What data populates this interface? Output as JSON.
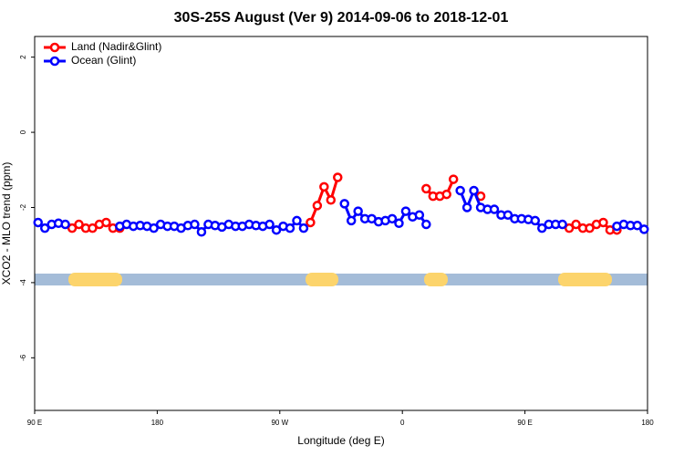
{
  "chart_data": {
    "type": "line",
    "title": "30S-25S August (Ver 9)   2014-09-06 to 2018-12-01",
    "x_label": "Longitude (deg E)",
    "y_label": "XCO2 - MLO trend (ppm)",
    "x": [
      92.5,
      97.5,
      102.5,
      107.5,
      112.5,
      117.5,
      122.5,
      127.5,
      132.5,
      137.5,
      142.5,
      147.5,
      152.5,
      157.5,
      162.5,
      167.5,
      172.5,
      177.5,
      182.5,
      187.5,
      192.5,
      197.5,
      202.5,
      207.5,
      212.5,
      217.5,
      222.5,
      227.5,
      232.5,
      237.5,
      242.5,
      247.5,
      252.5,
      257.5,
      262.5,
      267.5,
      272.5,
      277.5,
      282.5,
      287.5,
      292.5,
      297.5,
      302.5,
      307.5,
      312.5,
      317.5,
      322.5,
      327.5,
      332.5,
      337.5,
      342.5,
      347.5,
      352.5,
      357.5,
      362.5,
      367.5,
      372.5,
      377.5,
      382.5,
      387.5,
      392.5,
      397.5,
      402.5,
      407.5,
      412.5,
      417.5,
      422.5,
      427.5,
      432.5,
      437.5,
      442.5,
      447.5,
      452.5,
      457.5,
      462.5,
      467.5,
      472.5,
      477.5,
      482.5,
      487.5,
      492.5,
      497.5,
      502.5,
      507.5,
      512.5,
      517.5,
      522.5,
      527.5,
      532.5,
      537.5
    ],
    "series": [
      {
        "name": "Land (Nadir&Glint)",
        "color": "#ff0000",
        "values": [
          null,
          null,
          null,
          null,
          null,
          -2.55,
          -2.45,
          -2.55,
          -2.55,
          -2.45,
          -2.4,
          -2.55,
          -2.55,
          null,
          null,
          null,
          null,
          null,
          null,
          null,
          null,
          null,
          null,
          null,
          null,
          null,
          null,
          null,
          null,
          null,
          null,
          null,
          null,
          null,
          null,
          null,
          null,
          null,
          null,
          null,
          -2.4,
          -1.95,
          -1.45,
          -1.8,
          -1.2,
          null,
          null,
          null,
          null,
          null,
          null,
          null,
          null,
          null,
          null,
          null,
          null,
          -1.5,
          -1.7,
          -1.7,
          -1.65,
          -1.25,
          null,
          null,
          null,
          -1.7,
          null,
          null,
          null,
          null,
          null,
          null,
          null,
          null,
          null,
          null,
          null,
          null,
          -2.55,
          -2.45,
          -2.55,
          -2.55,
          -2.45,
          -2.4,
          -2.6,
          -2.6,
          null,
          null,
          null,
          null
        ]
      },
      {
        "name": "Ocean (Glint)",
        "color": "#0000ff",
        "values": [
          -2.4,
          -2.55,
          -2.45,
          -2.42,
          -2.45,
          null,
          null,
          null,
          null,
          null,
          null,
          null,
          -2.5,
          -2.45,
          -2.5,
          -2.48,
          -2.5,
          -2.55,
          -2.45,
          -2.5,
          -2.5,
          -2.55,
          -2.48,
          -2.45,
          -2.65,
          -2.45,
          -2.48,
          -2.52,
          -2.45,
          -2.5,
          -2.5,
          -2.45,
          -2.48,
          -2.5,
          -2.45,
          -2.6,
          -2.5,
          -2.55,
          -2.35,
          -2.55,
          null,
          null,
          null,
          null,
          null,
          -1.9,
          -2.35,
          -2.1,
          -2.3,
          -2.3,
          -2.38,
          -2.35,
          -2.3,
          -2.42,
          -2.1,
          -2.25,
          -2.2,
          -2.45,
          null,
          null,
          null,
          null,
          -1.55,
          -2.0,
          -1.55,
          -2.0,
          -2.05,
          -2.05,
          -2.2,
          -2.2,
          -2.3,
          -2.3,
          -2.32,
          -2.35,
          -2.55,
          -2.45,
          -2.45,
          -2.45,
          null,
          null,
          null,
          null,
          null,
          null,
          null,
          -2.5,
          -2.45,
          -2.48,
          -2.48,
          -2.58
        ]
      }
    ],
    "xlim": [
      90,
      540
    ],
    "xticks": [
      {
        "value": 90,
        "label": "90 E"
      },
      180,
      {
        "value": 270,
        "label": "90 W"
      },
      {
        "value": 360,
        "label": "0"
      },
      {
        "value": 450,
        "label": "90 E"
      },
      {
        "value": 540,
        "label": "180"
      }
    ],
    "ylim": [
      -7.4,
      2.55
    ],
    "yticks": [
      -6,
      -4,
      -2,
      0,
      2
    ],
    "legend": "top-left",
    "grid": false
  }
}
